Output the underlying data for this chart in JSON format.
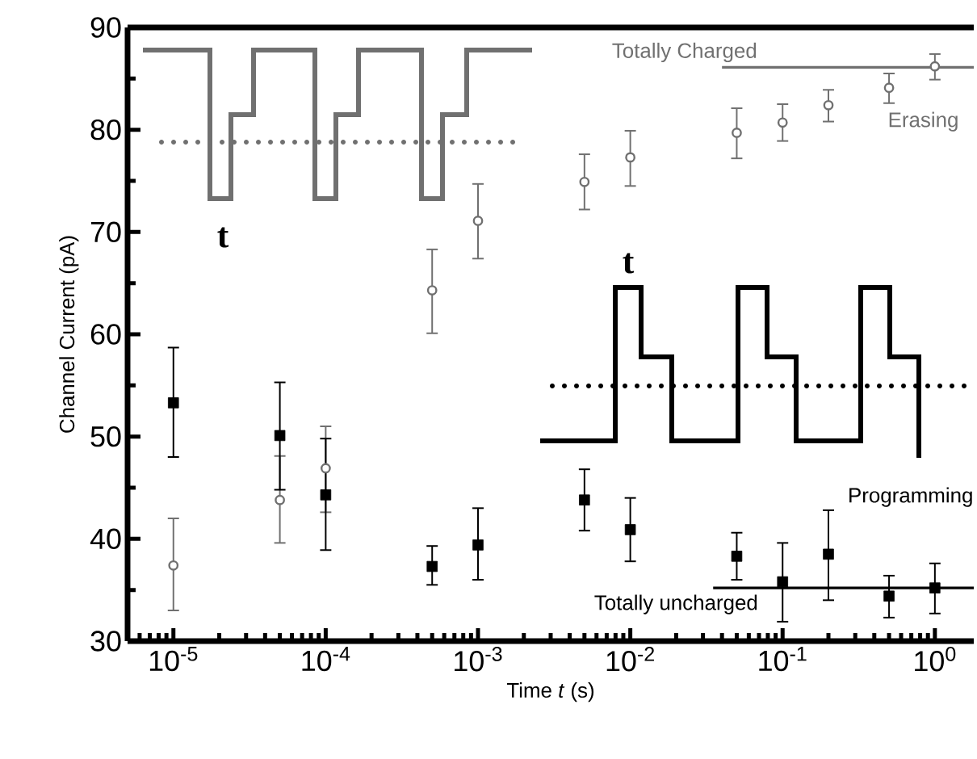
{
  "chart_data": {
    "type": "scatter",
    "xlabel": "Time *t* (s)",
    "ylabel": "Channel Current (pA)",
    "log": "x",
    "xlim": [
      5e-06,
      1.8
    ],
    "ylim": [
      30,
      90
    ],
    "xticks": [
      {
        "value": 1e-05,
        "label": "10$^{-5}$"
      },
      {
        "value": 0.0001,
        "label": "10$^{-4}$"
      },
      {
        "value": 0.001,
        "label": "10$^{-3}$"
      },
      {
        "value": 0.01,
        "label": "10$^{-2}$"
      },
      {
        "value": 0.1,
        "label": "10$^{-1}$"
      },
      {
        "value": 1,
        "label": "10$^{0}$"
      }
    ],
    "yticks": [
      30,
      40,
      50,
      60,
      70,
      80,
      90
    ],
    "grid": false,
    "series": [
      {
        "name": "Erasing",
        "type": "scatter",
        "marker": "circle",
        "color": "#707070",
        "x": [
          1e-05,
          5e-05,
          0.0001,
          0.0005,
          0.001,
          0.005,
          0.01,
          0.05,
          0.1,
          0.2,
          0.5,
          1
        ],
        "values": [
          37.4,
          43.8,
          46.9,
          64.3,
          71.1,
          74.9,
          77.3,
          79.7,
          80.7,
          82.4,
          84.1,
          86.2
        ],
        "errors": [
          [
            33.0,
            42.0
          ],
          [
            39.6,
            48.1
          ],
          [
            42.6,
            51.0
          ],
          [
            60.1,
            68.3
          ],
          [
            67.4,
            74.7
          ],
          [
            72.2,
            77.6
          ],
          [
            74.5,
            79.9
          ],
          [
            77.2,
            82.1
          ],
          [
            78.9,
            82.5
          ],
          [
            80.8,
            83.9
          ],
          [
            82.6,
            85.5
          ],
          [
            84.9,
            87.4
          ]
        ]
      },
      {
        "name": "Programming",
        "type": "scatter",
        "marker": "square",
        "color": "#000000",
        "x": [
          1e-05,
          5e-05,
          0.0001,
          0.0005,
          0.001,
          0.005,
          0.01,
          0.05,
          0.1,
          0.2,
          0.5,
          1
        ],
        "values": [
          53.3,
          50.1,
          44.3,
          37.3,
          39.4,
          43.8,
          40.9,
          38.3,
          35.8,
          38.5,
          34.4,
          35.2
        ],
        "errors": [
          [
            48.0,
            58.7
          ],
          [
            44.8,
            55.3
          ],
          [
            38.9,
            49.8
          ],
          [
            35.5,
            39.3
          ],
          [
            36.0,
            43.0
          ],
          [
            40.8,
            46.8
          ],
          [
            37.8,
            44.0
          ],
          [
            36.0,
            40.6
          ],
          [
            31.9,
            39.6
          ],
          [
            34.0,
            42.8
          ],
          [
            32.3,
            36.4
          ],
          [
            32.7,
            37.6
          ]
        ]
      },
      {
        "name": "Totally Charged",
        "type": "line",
        "marker": "none",
        "color": "#707070",
        "x": [
          0.04,
          1.8
        ],
        "values": [
          86.1,
          86.1
        ]
      },
      {
        "name": "Totally uncharged",
        "type": "line",
        "marker": "none",
        "color": "#000000",
        "x": [
          0.035,
          1.8
        ],
        "values": [
          35.2,
          35.2
        ]
      }
    ],
    "annotations": [
      "t",
      "t"
    ]
  }
}
